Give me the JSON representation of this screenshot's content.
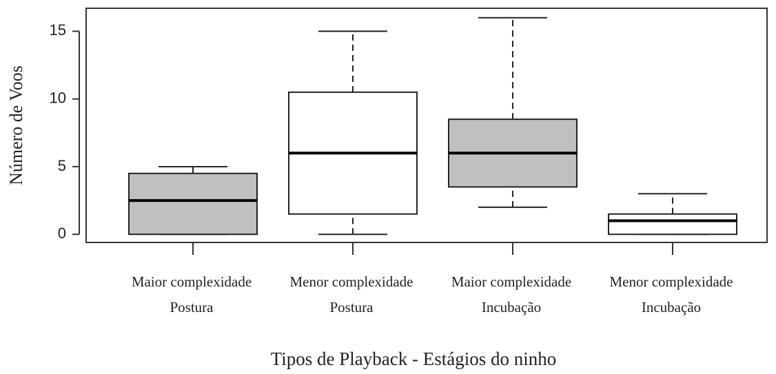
{
  "chart_data": {
    "type": "box",
    "y_label": "Número de Voos",
    "x_label": "Tipos de Playback - Estágios do ninho",
    "categories": [
      [
        "Maior complexidade",
        "Postura"
      ],
      [
        "Menor complexidade",
        "Postura"
      ],
      [
        "Maior complexidade",
        "Incubação"
      ],
      [
        "Menor complexidade",
        "Incubação"
      ]
    ],
    "boxes": [
      {
        "min": 0,
        "q1": 0,
        "median": 2.5,
        "q3": 4.5,
        "max": 5,
        "color": "#c0c0c0"
      },
      {
        "min": 0,
        "q1": 1.5,
        "median": 6,
        "q3": 10.5,
        "max": 15,
        "color": "#ffffff"
      },
      {
        "min": 2,
        "q1": 3.5,
        "median": 6,
        "q3": 8.5,
        "max": 16,
        "color": "#c0c0c0"
      },
      {
        "min": 0,
        "q1": 0,
        "median": 1,
        "q3": 1.5,
        "max": 3,
        "color": "#ffffff"
      }
    ],
    "ylim": [
      -0.6,
      16.7
    ],
    "yticks": [
      0,
      5,
      10,
      15
    ]
  }
}
